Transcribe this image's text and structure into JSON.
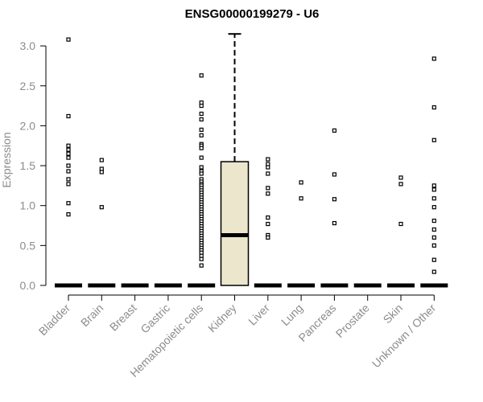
{
  "chart_data": {
    "type": "box",
    "title": "ENSG00000199279 - U6",
    "xlabel": "",
    "ylabel": "Expression",
    "ylim": [
      0,
      3.15
    ],
    "yticks": [
      "0.0",
      "0.5",
      "1.0",
      "1.5",
      "2.0",
      "2.5",
      "3.0"
    ],
    "grid": false,
    "colors": {
      "box_fill": "#ece6cc",
      "stroke": "#000000",
      "axis_text": "#8c8c8c"
    },
    "categories": [
      "Bladder",
      "Brain",
      "Breast",
      "Gastric",
      "Hematopoietic cells",
      "Kidney",
      "Liver",
      "Lung",
      "Pancreas",
      "Prostate",
      "Skin",
      "Unknown / Other"
    ],
    "boxes": [
      {
        "category": "Bladder",
        "q1": 0,
        "median": 0,
        "q3": 0,
        "whisker_low": 0,
        "whisker_high": 0,
        "outliers": [
          3.08,
          2.12,
          1.75,
          1.7,
          1.65,
          1.6,
          1.5,
          1.43,
          1.33,
          1.27,
          1.03,
          0.89
        ]
      },
      {
        "category": "Brain",
        "q1": 0,
        "median": 0,
        "q3": 0,
        "whisker_low": 0,
        "whisker_high": 0,
        "outliers": [
          1.57,
          1.46,
          1.42,
          0.98
        ]
      },
      {
        "category": "Breast",
        "q1": 0,
        "median": 0,
        "q3": 0,
        "whisker_low": 0,
        "whisker_high": 0,
        "outliers": []
      },
      {
        "category": "Gastric",
        "q1": 0,
        "median": 0,
        "q3": 0,
        "whisker_low": 0,
        "whisker_high": 0,
        "outliers": []
      },
      {
        "category": "Hematopoietic cells",
        "q1": 0,
        "median": 0,
        "q3": 0,
        "whisker_low": 0,
        "whisker_high": 0,
        "outliers": [
          2.63,
          2.29,
          2.25,
          2.15,
          2.08,
          1.95,
          1.88,
          1.77,
          1.75,
          1.72,
          1.6,
          1.48,
          1.43,
          1.4,
          1.33,
          1.3,
          1.27,
          1.25,
          1.22,
          1.19,
          1.16,
          1.13,
          1.1,
          1.07,
          1.04,
          1.01,
          0.98,
          0.95,
          0.92,
          0.89,
          0.86,
          0.83,
          0.8,
          0.77,
          0.74,
          0.71,
          0.68,
          0.65,
          0.62,
          0.59,
          0.56,
          0.53,
          0.5,
          0.47,
          0.44,
          0.41,
          0.37,
          0.33,
          0.25
        ]
      },
      {
        "category": "Kidney",
        "q1": 0,
        "median": 0.63,
        "q3": 1.55,
        "whisker_low": 0,
        "whisker_high": 3.15,
        "outliers": []
      },
      {
        "category": "Liver",
        "q1": 0,
        "median": 0,
        "q3": 0,
        "whisker_low": 0,
        "whisker_high": 0,
        "outliers": [
          1.58,
          1.52,
          1.48,
          1.4,
          1.22,
          1.15,
          0.85,
          0.77,
          0.63,
          0.6
        ]
      },
      {
        "category": "Lung",
        "q1": 0,
        "median": 0,
        "q3": 0,
        "whisker_low": 0,
        "whisker_high": 0,
        "outliers": [
          1.29,
          1.09
        ]
      },
      {
        "category": "Pancreas",
        "q1": 0,
        "median": 0,
        "q3": 0,
        "whisker_low": 0,
        "whisker_high": 0,
        "outliers": [
          1.94,
          1.39,
          1.08,
          0.78
        ]
      },
      {
        "category": "Prostate",
        "q1": 0,
        "median": 0,
        "q3": 0,
        "whisker_low": 0,
        "whisker_high": 0,
        "outliers": []
      },
      {
        "category": "Skin",
        "q1": 0,
        "median": 0,
        "q3": 0,
        "whisker_low": 0,
        "whisker_high": 0,
        "outliers": [
          1.35,
          1.27,
          0.77
        ]
      },
      {
        "category": "Unknown / Other",
        "q1": 0,
        "median": 0,
        "q3": 0,
        "whisker_low": 0,
        "whisker_high": 0,
        "outliers": [
          2.84,
          2.23,
          1.82,
          1.25,
          1.2,
          1.09,
          0.98,
          0.81,
          0.7,
          0.6,
          0.5,
          0.32,
          0.17
        ]
      }
    ]
  }
}
